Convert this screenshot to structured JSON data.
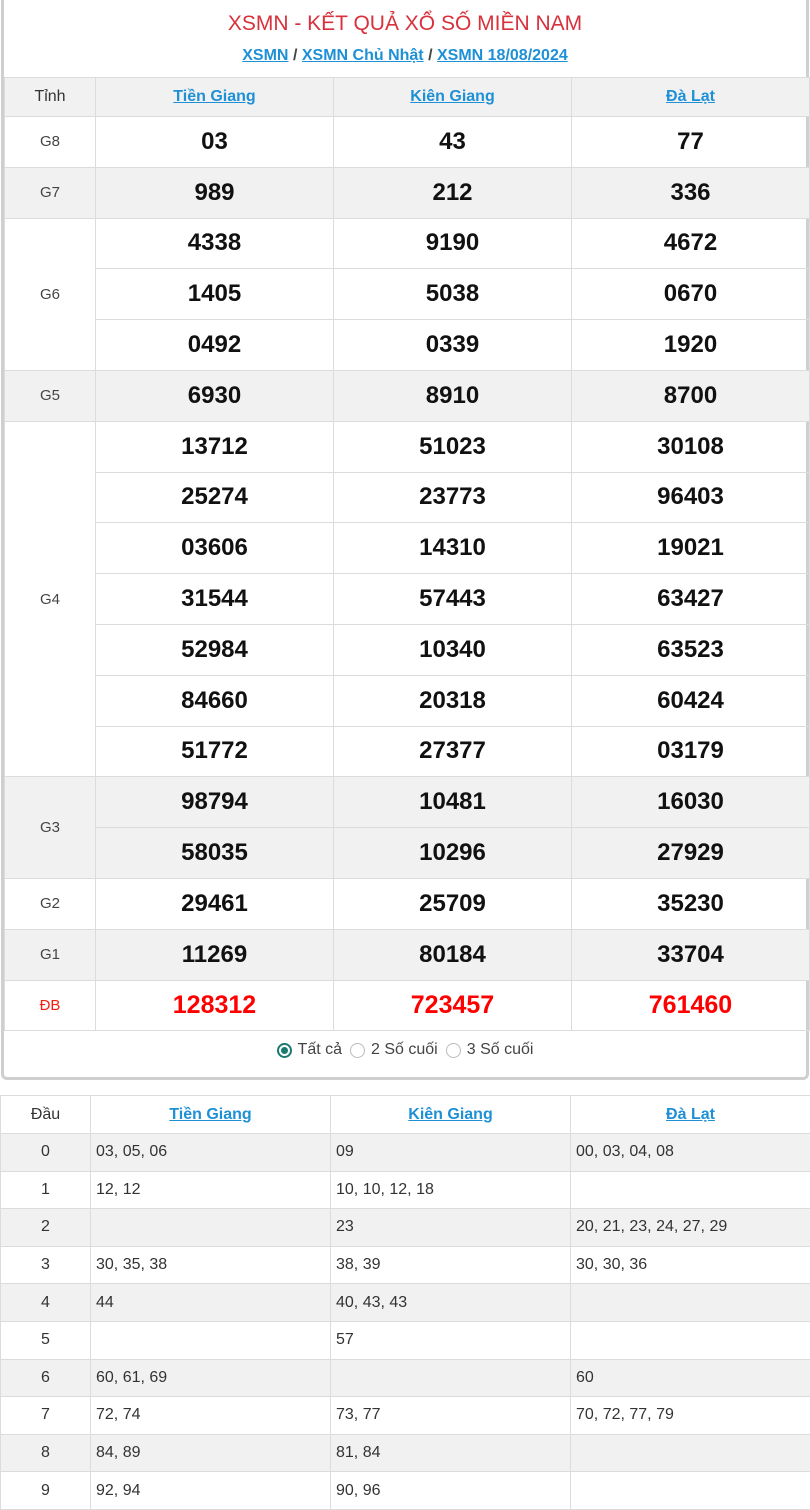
{
  "header": {
    "title": "XSMN - KẾT QUẢ XỔ SỐ MIỀN NAM",
    "breadcrumb": [
      "XSMN",
      "XSMN Chủ Nhật",
      "XSMN 18/08/2024"
    ],
    "separator": "/"
  },
  "results": {
    "label_header": "Tỉnh",
    "provinces": [
      "Tiền Giang",
      "Kiên Giang",
      "Đà Lạt"
    ],
    "prizes": [
      {
        "name": "G8",
        "rows": [
          [
            "03",
            "43",
            "77"
          ]
        ]
      },
      {
        "name": "G7",
        "rows": [
          [
            "989",
            "212",
            "336"
          ]
        ]
      },
      {
        "name": "G6",
        "rows": [
          [
            "4338",
            "9190",
            "4672"
          ],
          [
            "1405",
            "5038",
            "0670"
          ],
          [
            "0492",
            "0339",
            "1920"
          ]
        ]
      },
      {
        "name": "G5",
        "rows": [
          [
            "6930",
            "8910",
            "8700"
          ]
        ]
      },
      {
        "name": "G4",
        "rows": [
          [
            "13712",
            "51023",
            "30108"
          ],
          [
            "25274",
            "23773",
            "96403"
          ],
          [
            "03606",
            "14310",
            "19021"
          ],
          [
            "31544",
            "57443",
            "63427"
          ],
          [
            "52984",
            "10340",
            "63523"
          ],
          [
            "84660",
            "20318",
            "60424"
          ],
          [
            "51772",
            "27377",
            "03179"
          ]
        ]
      },
      {
        "name": "G3",
        "rows": [
          [
            "98794",
            "10481",
            "16030"
          ],
          [
            "58035",
            "10296",
            "27929"
          ]
        ]
      },
      {
        "name": "G2",
        "rows": [
          [
            "29461",
            "25709",
            "35230"
          ]
        ]
      },
      {
        "name": "G1",
        "rows": [
          [
            "11269",
            "80184",
            "33704"
          ]
        ]
      },
      {
        "name": "ĐB",
        "rows": [
          [
            "128312",
            "723457",
            "761460"
          ]
        ],
        "special": true
      }
    ]
  },
  "filter": {
    "options": [
      "Tất cả",
      "2 Số cuối",
      "3 Số cuối"
    ],
    "selected": 0
  },
  "dau_table": {
    "label_header": "Đầu",
    "provinces": [
      "Tiền Giang",
      "Kiên Giang",
      "Đà Lạt"
    ],
    "rows": [
      [
        "0",
        "03, 05, 06",
        "09",
        "00, 03, 04, 08"
      ],
      [
        "1",
        "12, 12",
        "10, 10, 12, 18",
        ""
      ],
      [
        "2",
        "",
        "23",
        "20, 21, 23, 24, 27, 29"
      ],
      [
        "3",
        "30, 35, 38",
        "38, 39",
        "30, 30, 36"
      ],
      [
        "4",
        "44",
        "40, 43, 43",
        ""
      ],
      [
        "5",
        "",
        "57",
        ""
      ],
      [
        "6",
        "60, 61, 69",
        "",
        "60"
      ],
      [
        "7",
        "72, 74",
        "73, 77",
        "70, 72, 77, 79"
      ],
      [
        "8",
        "84, 89",
        "81, 84",
        ""
      ],
      [
        "9",
        "92, 94",
        "90, 96",
        ""
      ]
    ]
  },
  "colors": {
    "title": "#d8313c",
    "link": "#1e90d6",
    "special": "#ff0000",
    "radio": "#1a7a6e"
  }
}
